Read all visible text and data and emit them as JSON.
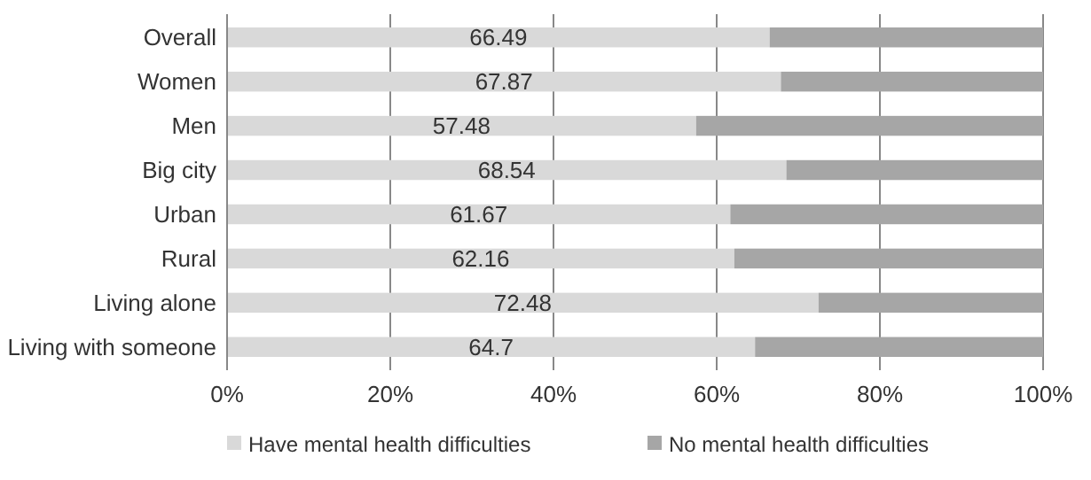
{
  "chart_data": {
    "type": "bar",
    "orientation": "horizontal",
    "stacked": true,
    "categories": [
      "Overall",
      "Women",
      "Men",
      "Big city",
      "Urban",
      "Rural",
      "Living alone",
      "Living with someone"
    ],
    "series": [
      {
        "name": "Have mental health difficulties",
        "color": "#d9d9d9",
        "values": [
          66.49,
          67.87,
          57.48,
          68.54,
          61.67,
          62.16,
          72.48,
          64.7
        ],
        "value_labels": [
          "66.49",
          "67.87",
          "57.48",
          "68.54",
          "61.67",
          "62.16",
          "72.48",
          "64.7"
        ]
      },
      {
        "name": "No mental health difficulties",
        "color": "#a6a6a6",
        "values": [
          33.51,
          32.13,
          42.52,
          31.46,
          38.33,
          37.84,
          27.52,
          35.3
        ]
      }
    ],
    "xlim": [
      0,
      100
    ],
    "xticks": [
      {
        "value": 0,
        "label": "0%"
      },
      {
        "value": 20,
        "label": "20%"
      },
      {
        "value": 40,
        "label": "40%"
      },
      {
        "value": 60,
        "label": "60%"
      },
      {
        "value": 80,
        "label": "80%"
      },
      {
        "value": 100,
        "label": "100%"
      }
    ],
    "grid": "x",
    "legend": "bottom"
  }
}
